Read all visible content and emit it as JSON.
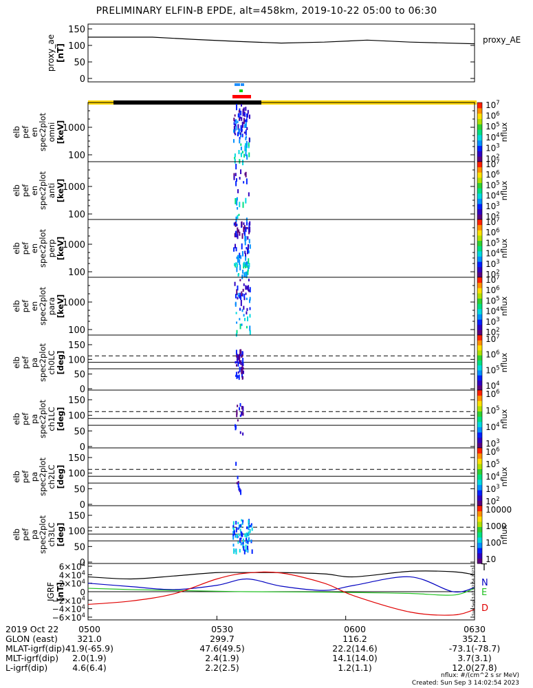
{
  "title": "PRELIMINARY ELFIN-B EPDE, alt=458km, 2019-10-22 05:00 to 06:30",
  "chart_data": [
    {
      "type": "line",
      "name": "proxy_ae",
      "ylabel": [
        "proxy_ae",
        "[nT]"
      ],
      "legend": "proxy_AE",
      "ylim": [
        0,
        150
      ],
      "yticks": [
        0,
        50,
        100,
        150
      ],
      "x_minutes": [
        0,
        15,
        25,
        35,
        45,
        55,
        65,
        75,
        90
      ],
      "values": [
        125,
        125,
        118,
        112,
        107,
        110,
        116,
        110,
        105
      ]
    },
    {
      "type": "heatmap",
      "name": "spec-omni",
      "ylabel": [
        "elb",
        "pef",
        "en",
        "spec2plot",
        "omni",
        "[keV]"
      ],
      "yticks": [
        "100",
        "1000"
      ],
      "colorbar": {
        "unit": "nflux",
        "ticks": [
          "10^2",
          "10^3",
          "10^4",
          "10^5",
          "10^6",
          "10^7"
        ]
      }
    },
    {
      "type": "heatmap",
      "name": "spec-anti",
      "ylabel": [
        "elb",
        "pef",
        "en",
        "spec2plot",
        "anti",
        "[keV]"
      ],
      "yticks": [
        "100",
        "1000"
      ],
      "colorbar": {
        "unit": "nflux",
        "ticks": [
          "10^2",
          "10^3",
          "10^4",
          "10^5",
          "10^6",
          "10^7"
        ]
      }
    },
    {
      "type": "heatmap",
      "name": "spec-perp",
      "ylabel": [
        "elb",
        "pef",
        "en",
        "spec2plot",
        "perp",
        "[keV]"
      ],
      "yticks": [
        "100",
        "1000"
      ],
      "colorbar": {
        "unit": "nflux",
        "ticks": [
          "10^2",
          "10^3",
          "10^4",
          "10^5",
          "10^6",
          "10^7"
        ]
      }
    },
    {
      "type": "heatmap",
      "name": "spec-para",
      "ylabel": [
        "elb",
        "pef",
        "en",
        "spec2plot",
        "para",
        "[keV]"
      ],
      "yticks": [
        "100",
        "1000"
      ],
      "colorbar": {
        "unit": "nflux",
        "ticks": [
          "10^2",
          "10^3",
          "10^4",
          "10^5",
          "10^6",
          "10^7"
        ]
      }
    },
    {
      "type": "heatmap",
      "name": "pa-ch0",
      "ylabel": [
        "elb",
        "pef",
        "pa",
        "spec2plot",
        "ch0LC",
        "[deg]"
      ],
      "yticks": [
        "0",
        "50",
        "100",
        "150"
      ],
      "colorbar": {
        "unit": "nflux",
        "ticks": [
          "10^4",
          "10^5",
          "10^6",
          "10^7"
        ]
      }
    },
    {
      "type": "heatmap",
      "name": "pa-ch1",
      "ylabel": [
        "elb",
        "pef",
        "pa",
        "spec2plot",
        "ch1LC",
        "[deg]"
      ],
      "yticks": [
        "0",
        "50",
        "100",
        "150"
      ],
      "colorbar": {
        "unit": "nflux",
        "ticks": [
          "10^3",
          "10^4",
          "10^5",
          "10^6"
        ]
      }
    },
    {
      "type": "heatmap",
      "name": "pa-ch2",
      "ylabel": [
        "elb",
        "pef",
        "pa",
        "spec2plot",
        "ch2LC",
        "[deg]"
      ],
      "yticks": [
        "0",
        "50",
        "100",
        "150"
      ],
      "colorbar": {
        "unit": "nflux",
        "ticks": [
          "10^2",
          "10^3",
          "10^4",
          "10^5",
          "10^6"
        ]
      }
    },
    {
      "type": "heatmap",
      "name": "pa-ch3",
      "ylabel": [
        "elb",
        "pef",
        "pa",
        "spec2plot",
        "ch3LC",
        "[deg]"
      ],
      "yticks": [
        "0",
        "50",
        "100",
        "150"
      ],
      "colorbar": {
        "unit": "nflux",
        "ticks": [
          "10",
          "100",
          "1000",
          "10000"
        ]
      }
    },
    {
      "type": "line",
      "name": "igrf",
      "ylabel": [
        "IGRF",
        "[nT]"
      ],
      "ylim": [
        -60000,
        60000
      ],
      "yticks": [
        "6×10^4",
        "4×10^4",
        "2×10^4",
        "0",
        "−2×10^4",
        "−4×10^4",
        "−6×10^4"
      ],
      "legend": [
        "T",
        "N",
        "E",
        "D"
      ],
      "x_minutes": [
        0,
        10,
        20,
        30,
        37,
        45,
        55,
        62,
        75,
        85,
        90
      ]
    }
  ],
  "igrf_series": {
    "T": [
      35000,
      30000,
      37000,
      45000,
      45000,
      45000,
      42000,
      35000,
      48000,
      47000,
      40000
    ],
    "N": [
      20000,
      12000,
      5000,
      15000,
      30000,
      13000,
      3000,
      15000,
      35000,
      0,
      10000
    ],
    "E": [
      8000,
      5000,
      3000,
      1000,
      0,
      -500,
      -1000,
      -2000,
      -4000,
      -8000,
      8000
    ],
    "D": [
      -30000,
      -22000,
      -5000,
      30000,
      44000,
      44000,
      20000,
      -10000,
      -48000,
      -55000,
      -42000
    ]
  },
  "x_axis": {
    "ticks": [
      "0500",
      "0530",
      "0600",
      "0630"
    ]
  },
  "footer": {
    "row_labels": [
      "2019 Oct 22",
      "GLON (east)",
      "MLAT-igrf(dip)",
      "MLT-igrf(dip)",
      "L-igrf(dip)"
    ],
    "columns": [
      [
        "0500",
        "321.0",
        "41.9(-65.9)",
        "2.0(1.9)",
        "4.6(6.4)"
      ],
      [
        "0530",
        "299.7",
        "47.6(49.5)",
        "2.4(1.9)",
        "2.2(2.5)"
      ],
      [
        "0600",
        "116.2",
        "22.2(14.6)",
        "14.1(14.0)",
        "1.2(1.1)"
      ],
      [
        "0630",
        "352.1",
        "-73.1(-78.7)",
        "3.7(3.1)",
        "12.0(27.8)"
      ]
    ],
    "nflux_note": "nflux: #/(cm^2 s sr MeV)",
    "created": "Created: Sun Sep  3 14:02:54 2023"
  }
}
